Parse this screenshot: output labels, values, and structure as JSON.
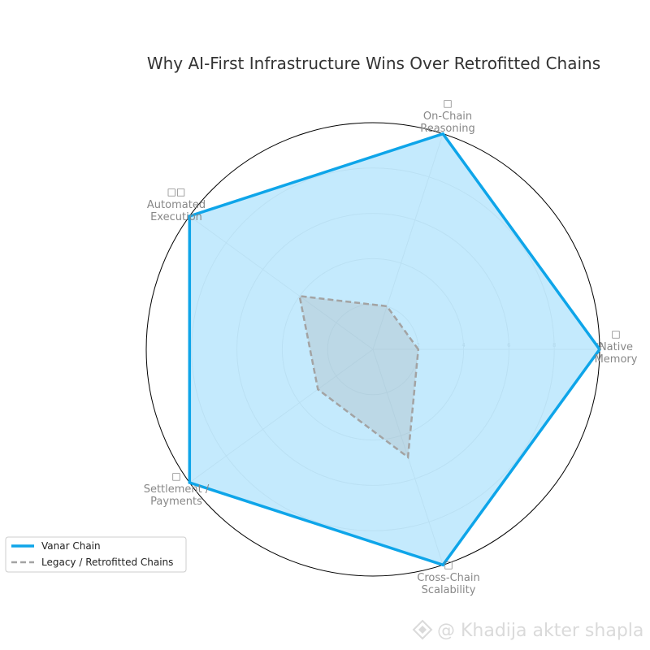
{
  "chart_data": {
    "type": "radar",
    "title": "Why AI-First Infrastructure Wins Over Retrofitted Chains",
    "axes": [
      {
        "icon": "□",
        "label": "Native\nMemory"
      },
      {
        "icon": "□",
        "label": "On-Chain\nReasoning"
      },
      {
        "icon": "□□",
        "label": "Automated\nExecution"
      },
      {
        "icon": "□",
        "label": "Settlement /\nPayments"
      },
      {
        "icon": "□",
        "label": "Cross-Chain\nScalability"
      }
    ],
    "rlim": [
      0,
      10
    ],
    "ticks": [
      "2",
      "4",
      "6",
      "8",
      "10"
    ],
    "series": [
      {
        "name": "Vanar Chain",
        "values": [
          10,
          10,
          10,
          10,
          10
        ],
        "color": "#0ea5e9",
        "fill": "#bae6fd",
        "style": "solid"
      },
      {
        "name": "Legacy / Retrofitted Chains",
        "values": [
          2,
          2,
          4,
          3,
          5
        ],
        "color": "#a3a3a3",
        "style": "dashed"
      }
    ],
    "grid": true,
    "legend_position": "bottom-left"
  },
  "watermark": {
    "text": "@ Khadija akter shapla",
    "icon": "binance-icon"
  }
}
